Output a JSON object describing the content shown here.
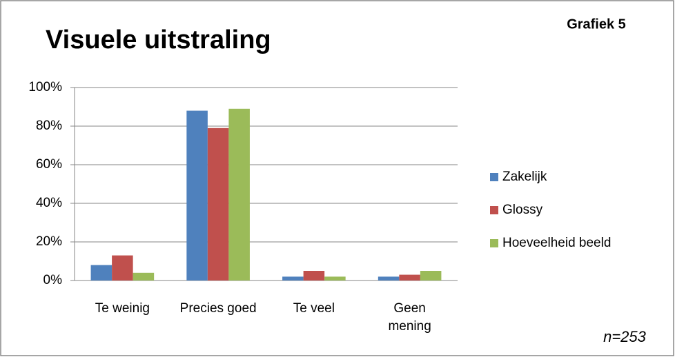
{
  "chart_data": {
    "type": "bar",
    "title": "Visuele uitstraling",
    "annotations": [
      "Grafiek 5",
      "n=253"
    ],
    "categories": [
      "Te weinig",
      "Precies goed",
      "Te veel",
      "Geen mening"
    ],
    "series": [
      {
        "name": "Zakelijk",
        "color": "#4f81bd",
        "values": [
          8,
          88,
          2,
          2
        ]
      },
      {
        "name": "Glossy",
        "color": "#c0504d",
        "values": [
          13,
          79,
          5,
          3
        ]
      },
      {
        "name": "Hoeveelheid beeld",
        "color": "#9bbb59",
        "values": [
          4,
          89,
          2,
          5
        ]
      }
    ],
    "ylim": [
      0,
      100
    ],
    "yticks": [
      {
        "value": 0,
        "label": "0%"
      },
      {
        "value": 20,
        "label": "20%"
      },
      {
        "value": 40,
        "label": "40%"
      },
      {
        "value": 60,
        "label": "60%"
      },
      {
        "value": 80,
        "label": "80%"
      },
      {
        "value": 100,
        "label": "100%"
      }
    ],
    "grid": true,
    "legend": "right"
  }
}
